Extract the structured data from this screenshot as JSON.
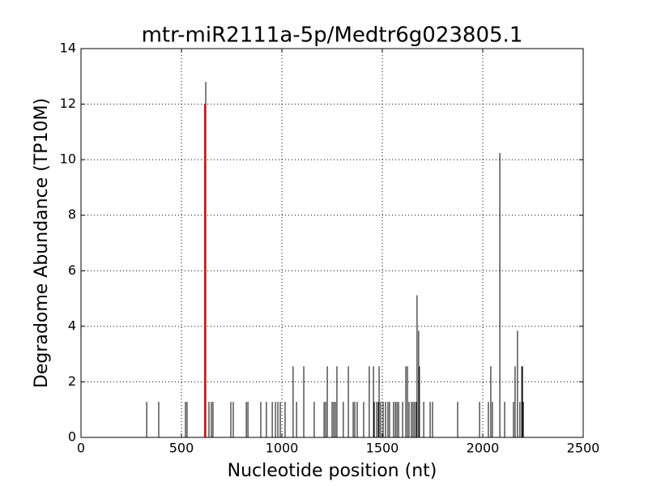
{
  "chart_data": {
    "type": "stem",
    "title": "mtr-miR2111a-5p/Medtr6g023805.1",
    "x_label": "Nucleotide position (nt)",
    "y_label": "Degradome Abundance (TP10M)",
    "x": [
      327,
      387,
      520,
      528,
      621,
      637,
      649,
      657,
      746,
      758,
      823,
      831,
      895,
      923,
      952,
      968,
      980,
      992,
      1016,
      1056,
      1073,
      1109,
      1161,
      1210,
      1218,
      1226,
      1250,
      1258,
      1266,
      1274,
      1306,
      1331,
      1355,
      1363,
      1375,
      1407,
      1435,
      1456,
      1460,
      1472,
      1480,
      1484,
      1492,
      1504,
      1516,
      1528,
      1536,
      1556,
      1565,
      1573,
      1581,
      1601,
      1617,
      1625,
      1633,
      1645,
      1653,
      1661,
      1669,
      1673,
      1681,
      1685,
      1706,
      1738,
      1750,
      1875,
      1984,
      2028,
      2040,
      2048,
      2085,
      2109,
      2153,
      2161,
      2173,
      2185,
      2194,
      2198,
      2202
    ],
    "values": [
      1.28,
      1.28,
      1.28,
      1.28,
      12.8,
      1.28,
      1.28,
      1.28,
      1.28,
      1.28,
      1.28,
      1.28,
      1.28,
      1.28,
      1.28,
      1.28,
      1.28,
      1.28,
      1.28,
      2.56,
      1.28,
      2.56,
      1.28,
      1.28,
      1.28,
      2.56,
      1.28,
      1.28,
      1.28,
      2.56,
      1.28,
      2.56,
      1.28,
      1.28,
      1.28,
      1.28,
      2.56,
      2.56,
      1.28,
      1.28,
      1.28,
      2.56,
      1.28,
      1.28,
      1.28,
      1.28,
      1.28,
      1.28,
      1.28,
      1.28,
      1.28,
      1.28,
      2.56,
      2.56,
      1.28,
      1.28,
      1.28,
      1.28,
      1.28,
      5.12,
      3.84,
      2.56,
      1.28,
      1.28,
      1.28,
      1.28,
      1.28,
      1.28,
      2.56,
      1.28,
      10.24,
      1.28,
      1.28,
      2.56,
      3.84,
      1.28,
      2.56,
      2.56,
      1.28
    ],
    "color": "#000000",
    "highlight": {
      "x": 617,
      "value": 12,
      "color": "#ff0000"
    },
    "xlim": [
      0,
      2500
    ],
    "xticks": [
      0,
      500,
      1000,
      1500,
      2000,
      2500
    ],
    "ylim": [
      0,
      14
    ],
    "yticks": [
      0,
      2,
      4,
      6,
      8,
      10,
      12,
      14
    ],
    "grid": true
  }
}
